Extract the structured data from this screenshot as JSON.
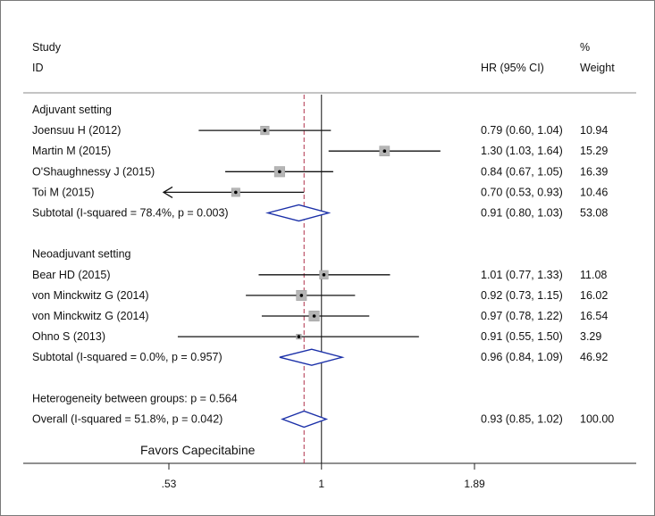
{
  "chart_data": {
    "type": "forest",
    "title": "",
    "header": {
      "study_line1": "Study",
      "study_line2": "ID",
      "effect_label": "HR (95% CI)",
      "weight_line1": "%",
      "weight_line2": "Weight"
    },
    "x_scale": "log",
    "xlim": [
      0.53,
      1.89
    ],
    "ticks": [
      {
        "label": ".53",
        "value": 0.53
      },
      {
        "label": "1",
        "value": 1.0
      },
      {
        "label": "1.89",
        "value": 1.89
      }
    ],
    "null_line": 1.0,
    "overall_line": 0.93,
    "favors_label": "Favors Capecitabine",
    "rows": [
      {
        "kind": "heading",
        "label": "Adjuvant setting"
      },
      {
        "kind": "study",
        "label": "Joensuu H (2012)",
        "hr": 0.79,
        "lo": 0.6,
        "hi": 1.04,
        "ci_text": "0.79 (0.60, 1.04)",
        "weight": 10.94,
        "weight_text": "10.94"
      },
      {
        "kind": "study",
        "label": "Martin M (2015)",
        "hr": 1.3,
        "lo": 1.03,
        "hi": 1.64,
        "ci_text": "1.30 (1.03, 1.64)",
        "weight": 15.29,
        "weight_text": "15.29"
      },
      {
        "kind": "study",
        "label": "O'Shaughnessy J (2015)",
        "hr": 0.84,
        "lo": 0.67,
        "hi": 1.05,
        "ci_text": "0.84 (0.67, 1.05)",
        "weight": 16.39,
        "weight_text": "16.39"
      },
      {
        "kind": "study",
        "label": "Toi M (2015)",
        "hr": 0.7,
        "lo": 0.53,
        "hi": 0.93,
        "ci_text": "0.70 (0.53, 0.93)",
        "weight": 10.46,
        "weight_text": "10.46",
        "arrow_left": true
      },
      {
        "kind": "subtotal",
        "label": "Subtotal  (I-squared = 78.4%, p = 0.003)",
        "hr": 0.91,
        "lo": 0.8,
        "hi": 1.03,
        "ci_text": "0.91 (0.80, 1.03)",
        "weight_text": "53.08"
      },
      {
        "kind": "gap"
      },
      {
        "kind": "heading",
        "label": "Neoadjuvant setting"
      },
      {
        "kind": "study",
        "label": "Bear HD (2015)",
        "hr": 1.01,
        "lo": 0.77,
        "hi": 1.33,
        "ci_text": "1.01 (0.77, 1.33)",
        "weight": 11.08,
        "weight_text": "11.08"
      },
      {
        "kind": "study",
        "label": "von Minckwitz G (2014)",
        "hr": 0.92,
        "lo": 0.73,
        "hi": 1.15,
        "ci_text": "0.92 (0.73, 1.15)",
        "weight": 16.02,
        "weight_text": "16.02"
      },
      {
        "kind": "study",
        "label": "von Minckwitz G (2014)",
        "hr": 0.97,
        "lo": 0.78,
        "hi": 1.22,
        "ci_text": "0.97 (0.78, 1.22)",
        "weight": 16.54,
        "weight_text": "16.54"
      },
      {
        "kind": "study",
        "label": "Ohno S (2013)",
        "hr": 0.91,
        "lo": 0.55,
        "hi": 1.5,
        "ci_text": "0.91 (0.55, 1.50)",
        "weight": 3.29,
        "weight_text": "3.29"
      },
      {
        "kind": "subtotal",
        "label": "Subtotal  (I-squared = 0.0%, p = 0.957)",
        "hr": 0.96,
        "lo": 0.84,
        "hi": 1.09,
        "ci_text": "0.96 (0.84, 1.09)",
        "weight_text": "46.92"
      },
      {
        "kind": "gap"
      },
      {
        "kind": "heading",
        "label": "Heterogeneity between groups: p = 0.564"
      },
      {
        "kind": "overall",
        "label": "Overall  (I-squared = 51.8%, p = 0.042)",
        "hr": 0.93,
        "lo": 0.85,
        "hi": 1.02,
        "ci_text": "0.93 (0.85, 1.02)",
        "weight_text": "100.00"
      }
    ]
  }
}
